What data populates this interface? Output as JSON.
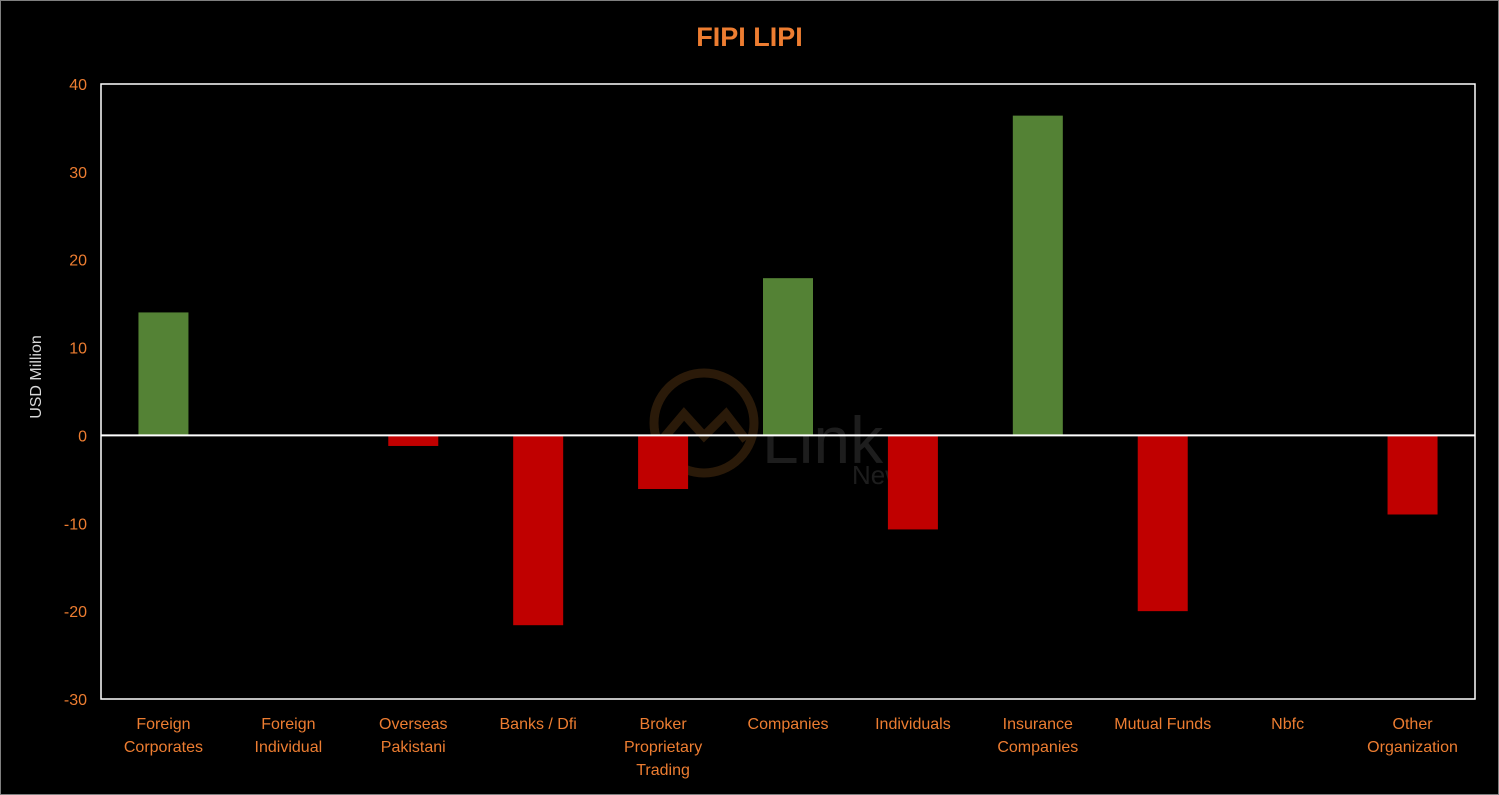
{
  "chart_data": {
    "type": "bar",
    "title": "FIPI LIPI",
    "ylabel": "USD Million",
    "xlabel": "",
    "ylim": [
      -30,
      40
    ],
    "yticks": [
      40,
      30,
      20,
      10,
      0,
      -10,
      -20,
      -30
    ],
    "grid": false,
    "categories": [
      [
        "Foreign",
        "Corporates"
      ],
      [
        "Foreign",
        "Individual"
      ],
      [
        "Overseas",
        "Pakistani"
      ],
      [
        "Banks / Dfi"
      ],
      [
        "Broker",
        "Proprietary",
        "Trading"
      ],
      [
        "Companies"
      ],
      [
        "Individuals"
      ],
      [
        "Insurance",
        "Companies"
      ],
      [
        "Mutual Funds"
      ],
      [
        "Nbfc"
      ],
      [
        "Other",
        "Organization"
      ]
    ],
    "values": [
      14.0,
      0.0,
      -1.2,
      -21.6,
      -6.1,
      17.9,
      -10.7,
      36.4,
      -20.0,
      0.0,
      -9.0
    ],
    "colors": {
      "positive": "#548235",
      "negative": "#c00000",
      "text": "#ed7d31",
      "axis": "#ffffff"
    }
  },
  "watermark": {
    "brand": "Link",
    "sub": "News"
  }
}
